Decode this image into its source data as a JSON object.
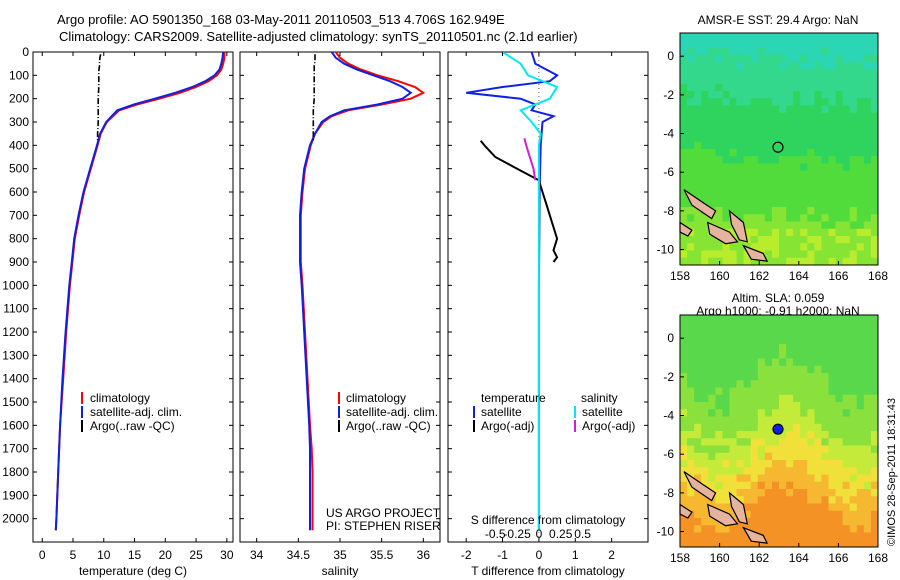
{
  "header": {
    "line1": "Argo profile: AO 5901350_168 03-May-2011 20110503_513 4.706S 162.949E",
    "line2": "Climatology: CARS2009. Satellite-adjusted climatology: synTS_20110501.nc (2.1d earlier)"
  },
  "stamp": "©IMOS 28-Sep-2011 18:31:43",
  "colors": {
    "climatology": "#ff0000",
    "satellite": "#1020e0",
    "argo": "#000000",
    "salinity_satellite": "#00e8f0",
    "salinity_argo": "#d020d0",
    "land": "#e6b49e"
  },
  "chart_data": [
    {
      "type": "line",
      "id": "temperature",
      "xlabel": "temperature (deg C)",
      "ylabel": "",
      "xlim": [
        -1.5,
        31
      ],
      "ylim": [
        2100,
        0
      ],
      "xticks": [
        0,
        5,
        10,
        15,
        20,
        25,
        30
      ],
      "yticks": [
        0,
        100,
        200,
        300,
        400,
        500,
        600,
        700,
        800,
        900,
        1000,
        1100,
        1200,
        1300,
        1400,
        1500,
        1600,
        1700,
        1800,
        1900,
        2000
      ],
      "legend": [
        "climatology",
        "satellite-adj. clim.",
        "Argo(..raw -QC)"
      ],
      "legend_position": "bottom-left",
      "series": [
        {
          "name": "climatology",
          "color": "#ff0000",
          "y": [
            0,
            25,
            50,
            75,
            100,
            125,
            150,
            175,
            200,
            225,
            250,
            300,
            350,
            400,
            500,
            600,
            700,
            800,
            900,
            1000,
            1200,
            1400,
            1600,
            1800,
            2000,
            2050
          ],
          "x": [
            29.6,
            29.6,
            29.4,
            29.1,
            28.4,
            27.0,
            25.0,
            22.4,
            19.0,
            15.4,
            12.5,
            10.5,
            9.5,
            9.0,
            7.9,
            6.8,
            6.0,
            5.3,
            4.9,
            4.5,
            3.9,
            3.4,
            2.9,
            2.6,
            2.3,
            2.2
          ]
        },
        {
          "name": "satellite-adj. clim.",
          "color": "#1020e0",
          "y": [
            0,
            25,
            50,
            75,
            100,
            125,
            150,
            175,
            200,
            225,
            250,
            300,
            350,
            400,
            500,
            600,
            700,
            800,
            900,
            1000,
            1200,
            1400,
            1600,
            1800,
            2000,
            2050
          ],
          "x": [
            29.4,
            29.3,
            29.1,
            28.8,
            28.0,
            26.5,
            24.4,
            21.6,
            18.3,
            14.9,
            12.2,
            10.4,
            9.4,
            8.9,
            7.8,
            6.7,
            5.9,
            5.2,
            4.8,
            4.4,
            3.8,
            3.3,
            2.9,
            2.6,
            2.3,
            2.2
          ]
        },
        {
          "name": "Argo(..raw -QC)",
          "color": "#000000",
          "dash": true,
          "y": [
            10,
            20,
            40,
            60,
            80,
            100,
            150,
            200,
            250,
            300,
            350,
            380
          ],
          "x": [
            9.5,
            9.4,
            9.3,
            9.3,
            9.2,
            9.2,
            9.2,
            9.1,
            9.1,
            9.1,
            9.0,
            9.0
          ]
        }
      ]
    },
    {
      "type": "line",
      "id": "salinity",
      "xlabel": "salinity",
      "xlim": [
        33.8,
        36.2
      ],
      "ylim": [
        2100,
        0
      ],
      "xticks": [
        34,
        34.5,
        35,
        35.5,
        36
      ],
      "legend": [
        "climatology",
        "satellite-adj. clim.",
        "Argo(..raw -QC)"
      ],
      "legend_position": "bottom-right",
      "annotation": [
        "US ARGO PROJECT",
        "PI: STEPHEN RISER"
      ],
      "series": [
        {
          "name": "climatology",
          "color": "#ff0000",
          "y": [
            0,
            25,
            50,
            75,
            100,
            125,
            150,
            175,
            200,
            225,
            250,
            275,
            300,
            350,
            400,
            500,
            600,
            700,
            800,
            900,
            1000,
            1200,
            1400,
            1600,
            1700,
            1800,
            1900,
            2000,
            2050
          ],
          "x": [
            34.95,
            35.0,
            35.1,
            35.25,
            35.45,
            35.7,
            35.9,
            36.0,
            35.85,
            35.5,
            35.1,
            34.9,
            34.8,
            34.7,
            34.65,
            34.58,
            34.55,
            34.53,
            34.53,
            34.53,
            34.55,
            34.58,
            34.61,
            34.64,
            34.66,
            34.67,
            34.67,
            34.67,
            34.67
          ]
        },
        {
          "name": "satellite-adj. clim.",
          "color": "#1020e0",
          "y": [
            0,
            25,
            50,
            75,
            100,
            125,
            150,
            175,
            200,
            225,
            250,
            275,
            300,
            350,
            400,
            500,
            600,
            700,
            800,
            900,
            1000,
            1200,
            1400,
            1600,
            1700,
            1800,
            1900,
            2000,
            2050
          ],
          "x": [
            34.9,
            34.95,
            35.05,
            35.2,
            35.4,
            35.6,
            35.75,
            35.85,
            35.75,
            35.45,
            35.05,
            34.88,
            34.78,
            34.7,
            34.64,
            34.57,
            34.54,
            34.52,
            34.52,
            34.52,
            34.54,
            34.57,
            34.6,
            34.63,
            34.64,
            34.64,
            34.64,
            34.64,
            34.64
          ]
        },
        {
          "name": "Argo(..raw -QC)",
          "color": "#000000",
          "dash": true,
          "y": [
            10,
            20,
            40,
            60,
            80,
            100,
            150,
            200,
            250,
            300,
            350,
            380
          ],
          "x": [
            34.7,
            34.7,
            34.7,
            34.69,
            34.69,
            34.69,
            34.69,
            34.69,
            34.68,
            34.68,
            34.68,
            34.68
          ]
        }
      ]
    },
    {
      "type": "line",
      "id": "difference",
      "xlabel": "T difference from climatology",
      "xlabel_top": "S difference from climatology",
      "xlim": [
        -2.5,
        3
      ],
      "ylim": [
        2100,
        0
      ],
      "xticks": [
        -2,
        -1,
        0,
        1,
        2
      ],
      "s_ticks": [
        "-0.5",
        "-0.25",
        "0",
        "0.25",
        "0.5"
      ],
      "legend": {
        "temperature_header": "temperature",
        "salinity_header": "salinity",
        "t_satellite": "satellite",
        "t_argo": "Argo(-adj)",
        "s_satellite": "satellite",
        "s_argo": "Argo(-adj)"
      },
      "series": [
        {
          "name": "T satellite",
          "color": "#1020e0",
          "y": [
            0,
            50,
            100,
            125,
            150,
            175,
            200,
            225,
            250,
            275,
            300,
            400,
            600,
            800,
            1000,
            1200,
            1400,
            1600,
            1800,
            2000,
            2050
          ],
          "x": [
            -0.2,
            -0.1,
            0.5,
            0.3,
            -1.0,
            -2.0,
            -0.5,
            -0.1,
            -0.2,
            0.4,
            0.1,
            0.05,
            0.02,
            0.01,
            0.0,
            0.0,
            0.0,
            0.0,
            0.0,
            0.0,
            0.0
          ]
        },
        {
          "name": "T Argo(-adj)",
          "color": "#000000",
          "y": [
            380,
            400,
            450,
            500,
            550,
            600,
            650,
            700,
            800,
            850,
            880,
            900
          ],
          "x": [
            -1.6,
            -1.5,
            -1.2,
            -0.6,
            0.0,
            0.1,
            0.2,
            0.3,
            0.5,
            0.4,
            0.5,
            0.4
          ]
        },
        {
          "name": "S satellite",
          "color": "#00e8f0",
          "y": [
            0,
            50,
            100,
            150,
            200,
            250,
            300,
            350,
            400,
            600,
            800,
            1000,
            1200,
            1400,
            1600,
            1800,
            2000,
            2050
          ],
          "x": [
            -1.0,
            -0.5,
            -0.3,
            0.5,
            0.3,
            -0.5,
            -0.2,
            0.05,
            0.0,
            0.0,
            0.0,
            0.0,
            0.0,
            0.0,
            0.0,
            0.0,
            0.0,
            0.0
          ]
        },
        {
          "name": "S Argo(-adj)",
          "color": "#d020d0",
          "y": [
            370,
            400,
            450,
            500,
            550
          ],
          "x": [
            -0.4,
            -0.35,
            -0.25,
            -0.15,
            -0.1
          ]
        }
      ]
    },
    {
      "type": "heatmap",
      "id": "sst-map",
      "title": "AMSR-E SST: 29.4  Argo: NaN",
      "xlim": [
        158,
        168
      ],
      "ylim": [
        -10.8,
        1.2
      ],
      "xticks": [
        158,
        160,
        162,
        164,
        166,
        168
      ],
      "yticks": [
        0,
        -2,
        -4,
        -6,
        -8,
        -10
      ],
      "marker": {
        "lon": 162.949,
        "lat": -4.706,
        "style": "open-circle"
      }
    },
    {
      "type": "heatmap",
      "id": "sla-map",
      "title_line1": "Altim. SLA: 0.059",
      "title_line2": "Argo h1000: -0.91 h2000: NaN",
      "xlim": [
        158,
        168
      ],
      "ylim": [
        -10.8,
        1.2
      ],
      "xticks": [
        158,
        160,
        162,
        164,
        166,
        168
      ],
      "yticks": [
        0,
        -2,
        -4,
        -6,
        -8,
        -10
      ],
      "marker": {
        "lon": 162.949,
        "lat": -4.706,
        "style": "filled-circle"
      }
    }
  ]
}
